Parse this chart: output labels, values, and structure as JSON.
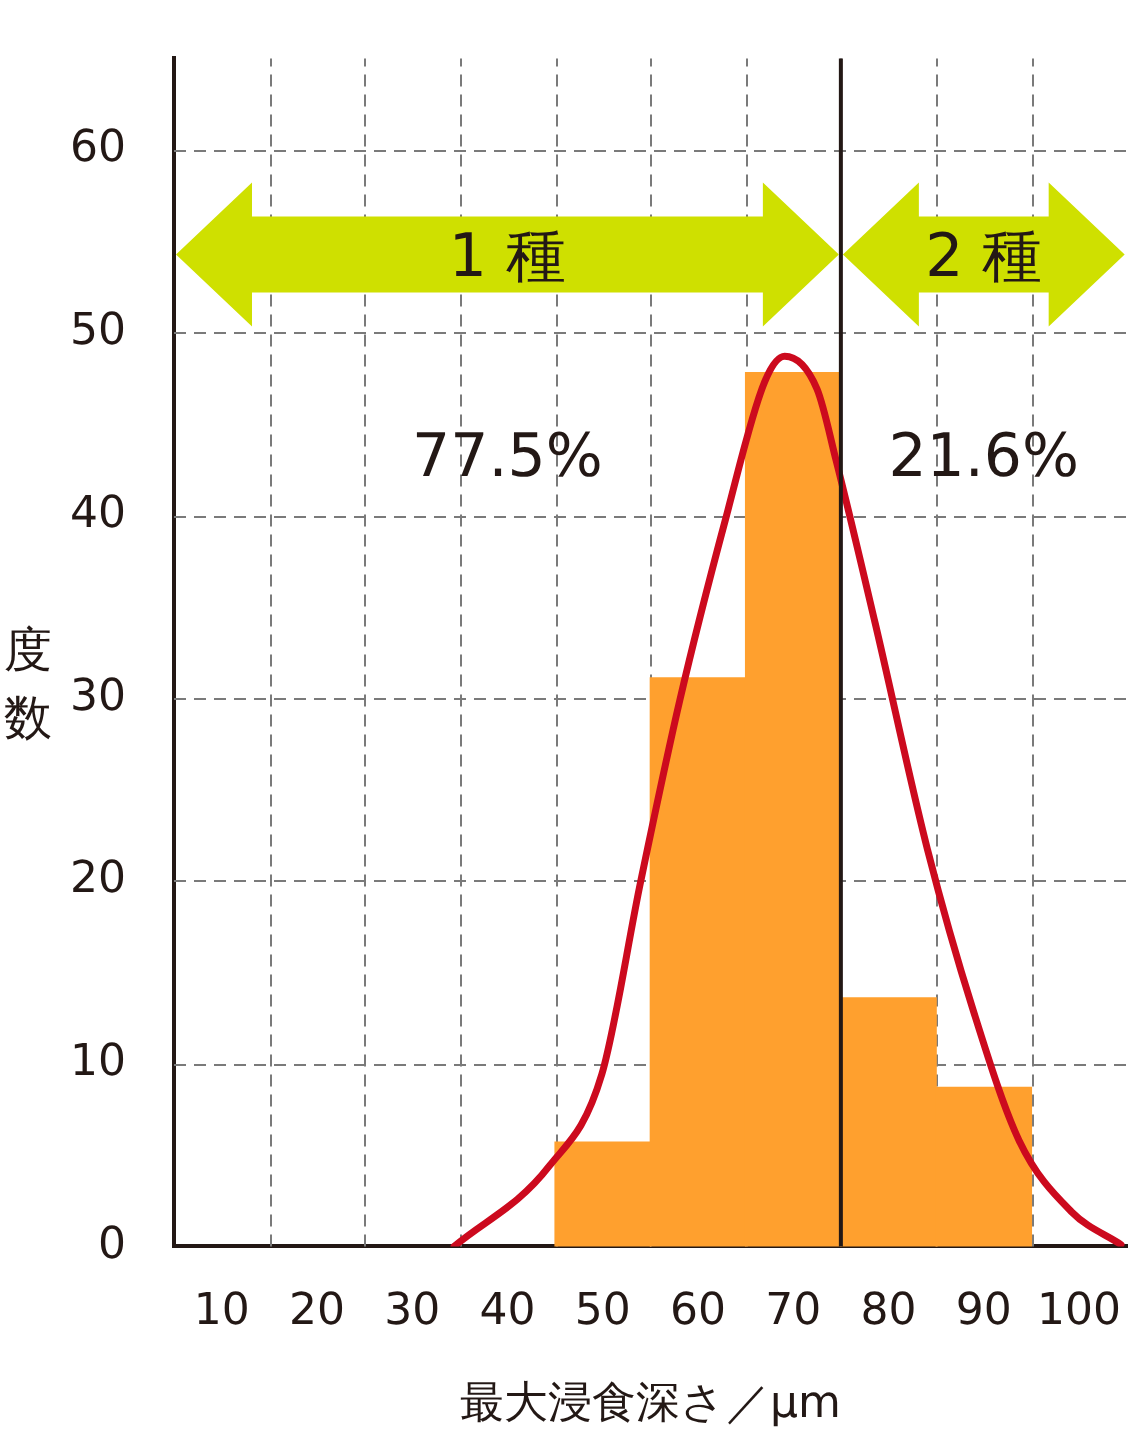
{
  "chart_data": {
    "type": "histogram",
    "xlabel": "最大浸食深さ／μm",
    "ylabel": "度数",
    "bins": [
      45,
      55,
      65,
      75,
      85,
      95
    ],
    "values": [
      5.7,
      31.1,
      47.8,
      13.6,
      8.7
    ],
    "color": "#ffa02e",
    "series": [
      {
        "type": "line",
        "color": "#cc0a1e",
        "x": [
          34.4,
          44.4,
          49.9,
          54.0,
          58.1,
          62.9,
          67.0,
          69.1,
          72.5,
          74.5,
          78.6,
          84.1,
          88.9,
          93.7,
          99.2,
          104.4
        ],
        "values": [
          0,
          4.4,
          9.4,
          20,
          29.9,
          39.8,
          47.3,
          48.7,
          46.9,
          43,
          34.1,
          21.7,
          12.9,
          5.8,
          1.9,
          0.1
        ]
      }
    ],
    "xlim": [
      5,
      105
    ],
    "xticks": [
      10,
      {
        "value": 15,
        "label": null
      },
      20,
      {
        "value": 25,
        "label": null
      },
      30,
      {
        "value": 35,
        "label": null
      },
      40,
      {
        "value": 45,
        "label": null
      },
      50,
      {
        "value": 55,
        "label": null
      },
      60,
      {
        "value": 65,
        "label": null
      },
      70,
      {
        "value": 75,
        "label": null
      },
      80,
      {
        "value": 85,
        "label": null
      },
      90,
      {
        "value": 95,
        "label": null
      },
      100
    ],
    "ylim": [
      0,
      65
    ],
    "yticks": [
      0,
      10,
      20,
      30,
      40,
      50,
      60
    ],
    "grid": true,
    "legend": false,
    "marker": "none",
    "line_style": "solid",
    "ref_lines": [
      {
        "axis": "x",
        "value": 75,
        "color": "#231815"
      }
    ],
    "annotations": [
      "1 種",
      "77.5%",
      "2 種",
      "21.6%"
    ]
  }
}
